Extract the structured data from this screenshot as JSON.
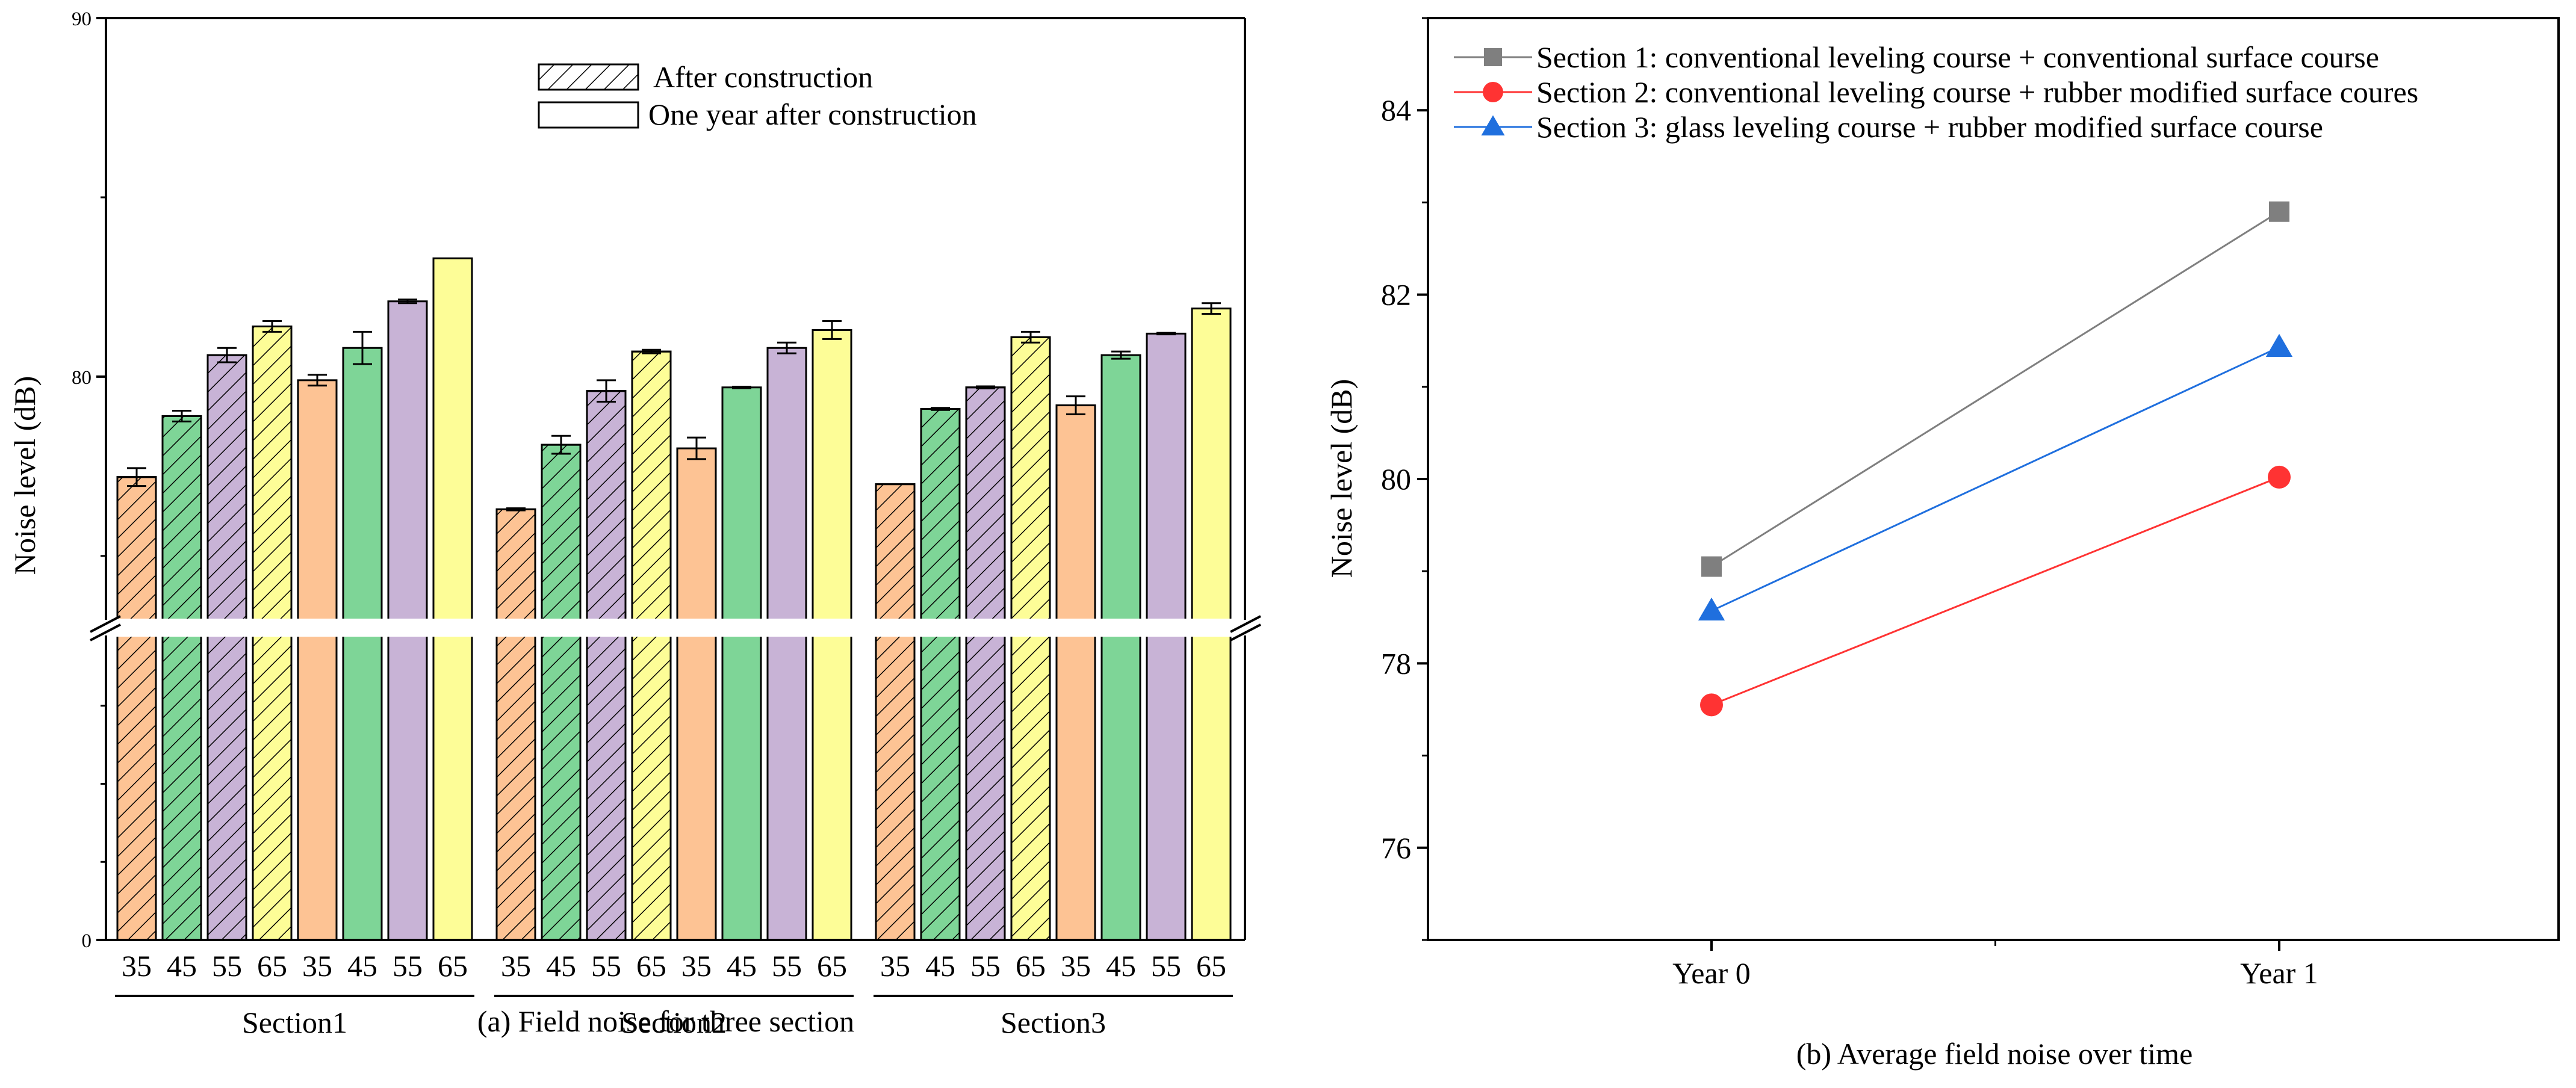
{
  "figure": {
    "caption_a": "(a) Field noise for three section",
    "caption_b": "(b) Average field noise over time"
  },
  "chart_data": [
    {
      "type": "bar",
      "ylabel": "Noise level (dB)",
      "ylim_upper": [
        73,
        90
      ],
      "ylim_lower": [
        0,
        73
      ],
      "axis_break": true,
      "y_ticks": [
        "0",
        "80",
        "90"
      ],
      "bar_ticks": [
        "35",
        "45",
        "55",
        "65",
        "35",
        "45",
        "55",
        "65"
      ],
      "sections": [
        "Section1",
        "Section2",
        "Section3"
      ],
      "legend": [
        "After construction",
        "One year after construction"
      ],
      "colors": {
        "35": "#fdc394",
        "45": "#7ed597",
        "55": "#c8b3d6",
        "65": "#fdfd97"
      },
      "series": [
        {
          "section": "Section1",
          "after": [
            {
              "speed": "35",
              "value": 77.2,
              "err": 0.25
            },
            {
              "speed": "45",
              "value": 78.9,
              "err": 0.15
            },
            {
              "speed": "55",
              "value": 80.6,
              "err": 0.2
            },
            {
              "speed": "65",
              "value": 81.4,
              "err": 0.15
            }
          ],
          "one_year": [
            {
              "speed": "35",
              "value": 79.9,
              "err": 0.15
            },
            {
              "speed": "45",
              "value": 80.8,
              "err": 0.45
            },
            {
              "speed": "55",
              "value": 82.1,
              "err": 0.05
            },
            {
              "speed": "65",
              "value": 83.3,
              "err": 0
            }
          ]
        },
        {
          "section": "Section2",
          "after": [
            {
              "speed": "35",
              "value": 76.3,
              "err": 0.03
            },
            {
              "speed": "45",
              "value": 78.1,
              "err": 0.25
            },
            {
              "speed": "55",
              "value": 79.6,
              "err": 0.3
            },
            {
              "speed": "65",
              "value": 80.7,
              "err": 0.05
            }
          ],
          "one_year": [
            {
              "speed": "35",
              "value": 78.0,
              "err": 0.3
            },
            {
              "speed": "45",
              "value": 79.7,
              "err": 0.02
            },
            {
              "speed": "55",
              "value": 80.8,
              "err": 0.15
            },
            {
              "speed": "65",
              "value": 81.3,
              "err": 0.25
            }
          ]
        },
        {
          "section": "Section3",
          "after": [
            {
              "speed": "35",
              "value": 77.0,
              "err": 0
            },
            {
              "speed": "45",
              "value": 79.1,
              "err": 0.03
            },
            {
              "speed": "55",
              "value": 79.7,
              "err": 0.03
            },
            {
              "speed": "65",
              "value": 81.1,
              "err": 0.15
            }
          ],
          "one_year": [
            {
              "speed": "35",
              "value": 79.2,
              "err": 0.25
            },
            {
              "speed": "45",
              "value": 80.6,
              "err": 0.1
            },
            {
              "speed": "55",
              "value": 81.2,
              "err": 0.02
            },
            {
              "speed": "65",
              "value": 81.9,
              "err": 0.15
            }
          ]
        }
      ]
    },
    {
      "type": "line",
      "xlabel": "",
      "ylabel": "Noise level (dB)",
      "categories": [
        "Year 0",
        "Year 1"
      ],
      "ylim": [
        75,
        85
      ],
      "y_ticks": [
        76,
        78,
        80,
        82,
        84
      ],
      "series": [
        {
          "name": "Section 1: conventional leveling course + conventional surface course",
          "values": [
            79.05,
            82.9
          ],
          "color": "#7f7f7f",
          "marker": "square"
        },
        {
          "name": "Section 2: conventional leveling course + rubber modified surface coures",
          "values": [
            77.55,
            80.02
          ],
          "color": "#ff3333",
          "marker": "circle"
        },
        {
          "name": "Section 3: glass leveling course + rubber modified surface course",
          "values": [
            78.57,
            81.43
          ],
          "color": "#1f6fde",
          "marker": "triangle"
        }
      ]
    }
  ]
}
